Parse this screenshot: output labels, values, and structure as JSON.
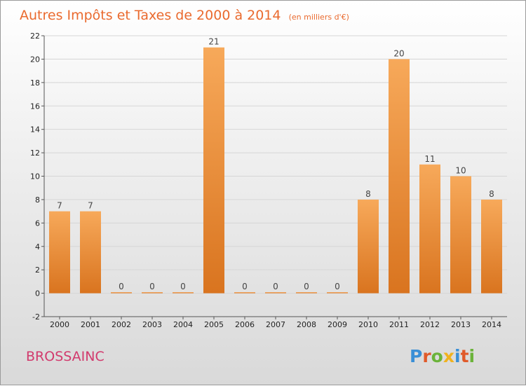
{
  "title": "Autres Impôts et Taxes de 2000 à 2014",
  "subtitle": "(en milliers d'€)",
  "commune": "BROSSAINC",
  "logo": {
    "letters": [
      {
        "char": "P",
        "color": "#3a8fd6"
      },
      {
        "char": "r",
        "color": "#e05a2a"
      },
      {
        "char": "o",
        "color": "#6bb33a"
      },
      {
        "char": "x",
        "color": "#f0b21e"
      },
      {
        "char": "i",
        "color": "#3a8fd6"
      },
      {
        "char": "t",
        "color": "#e05a2a"
      },
      {
        "char": "i",
        "color": "#6bb33a"
      }
    ]
  },
  "colors": {
    "bar_light": "#f7a95a",
    "bar_dark": "#d9741f",
    "title": "#ea6a2e",
    "commune": "#d23a6d"
  },
  "chart_data": {
    "type": "bar",
    "title": "Autres Impôts et Taxes de 2000 à 2014",
    "subtitle": "(en milliers d'€)",
    "categories": [
      "2000",
      "2001",
      "2002",
      "2003",
      "2004",
      "2005",
      "2006",
      "2007",
      "2008",
      "2009",
      "2010",
      "2011",
      "2012",
      "2013",
      "2014"
    ],
    "values": [
      7,
      7,
      0,
      0,
      0,
      21,
      0,
      0,
      0,
      0,
      8,
      20,
      11,
      10,
      8
    ],
    "ylim": [
      -2,
      22
    ],
    "yticks": [
      -2,
      0,
      2,
      4,
      6,
      8,
      10,
      12,
      14,
      16,
      18,
      20,
      22
    ],
    "grid": true,
    "xlabel": "",
    "ylabel": ""
  }
}
